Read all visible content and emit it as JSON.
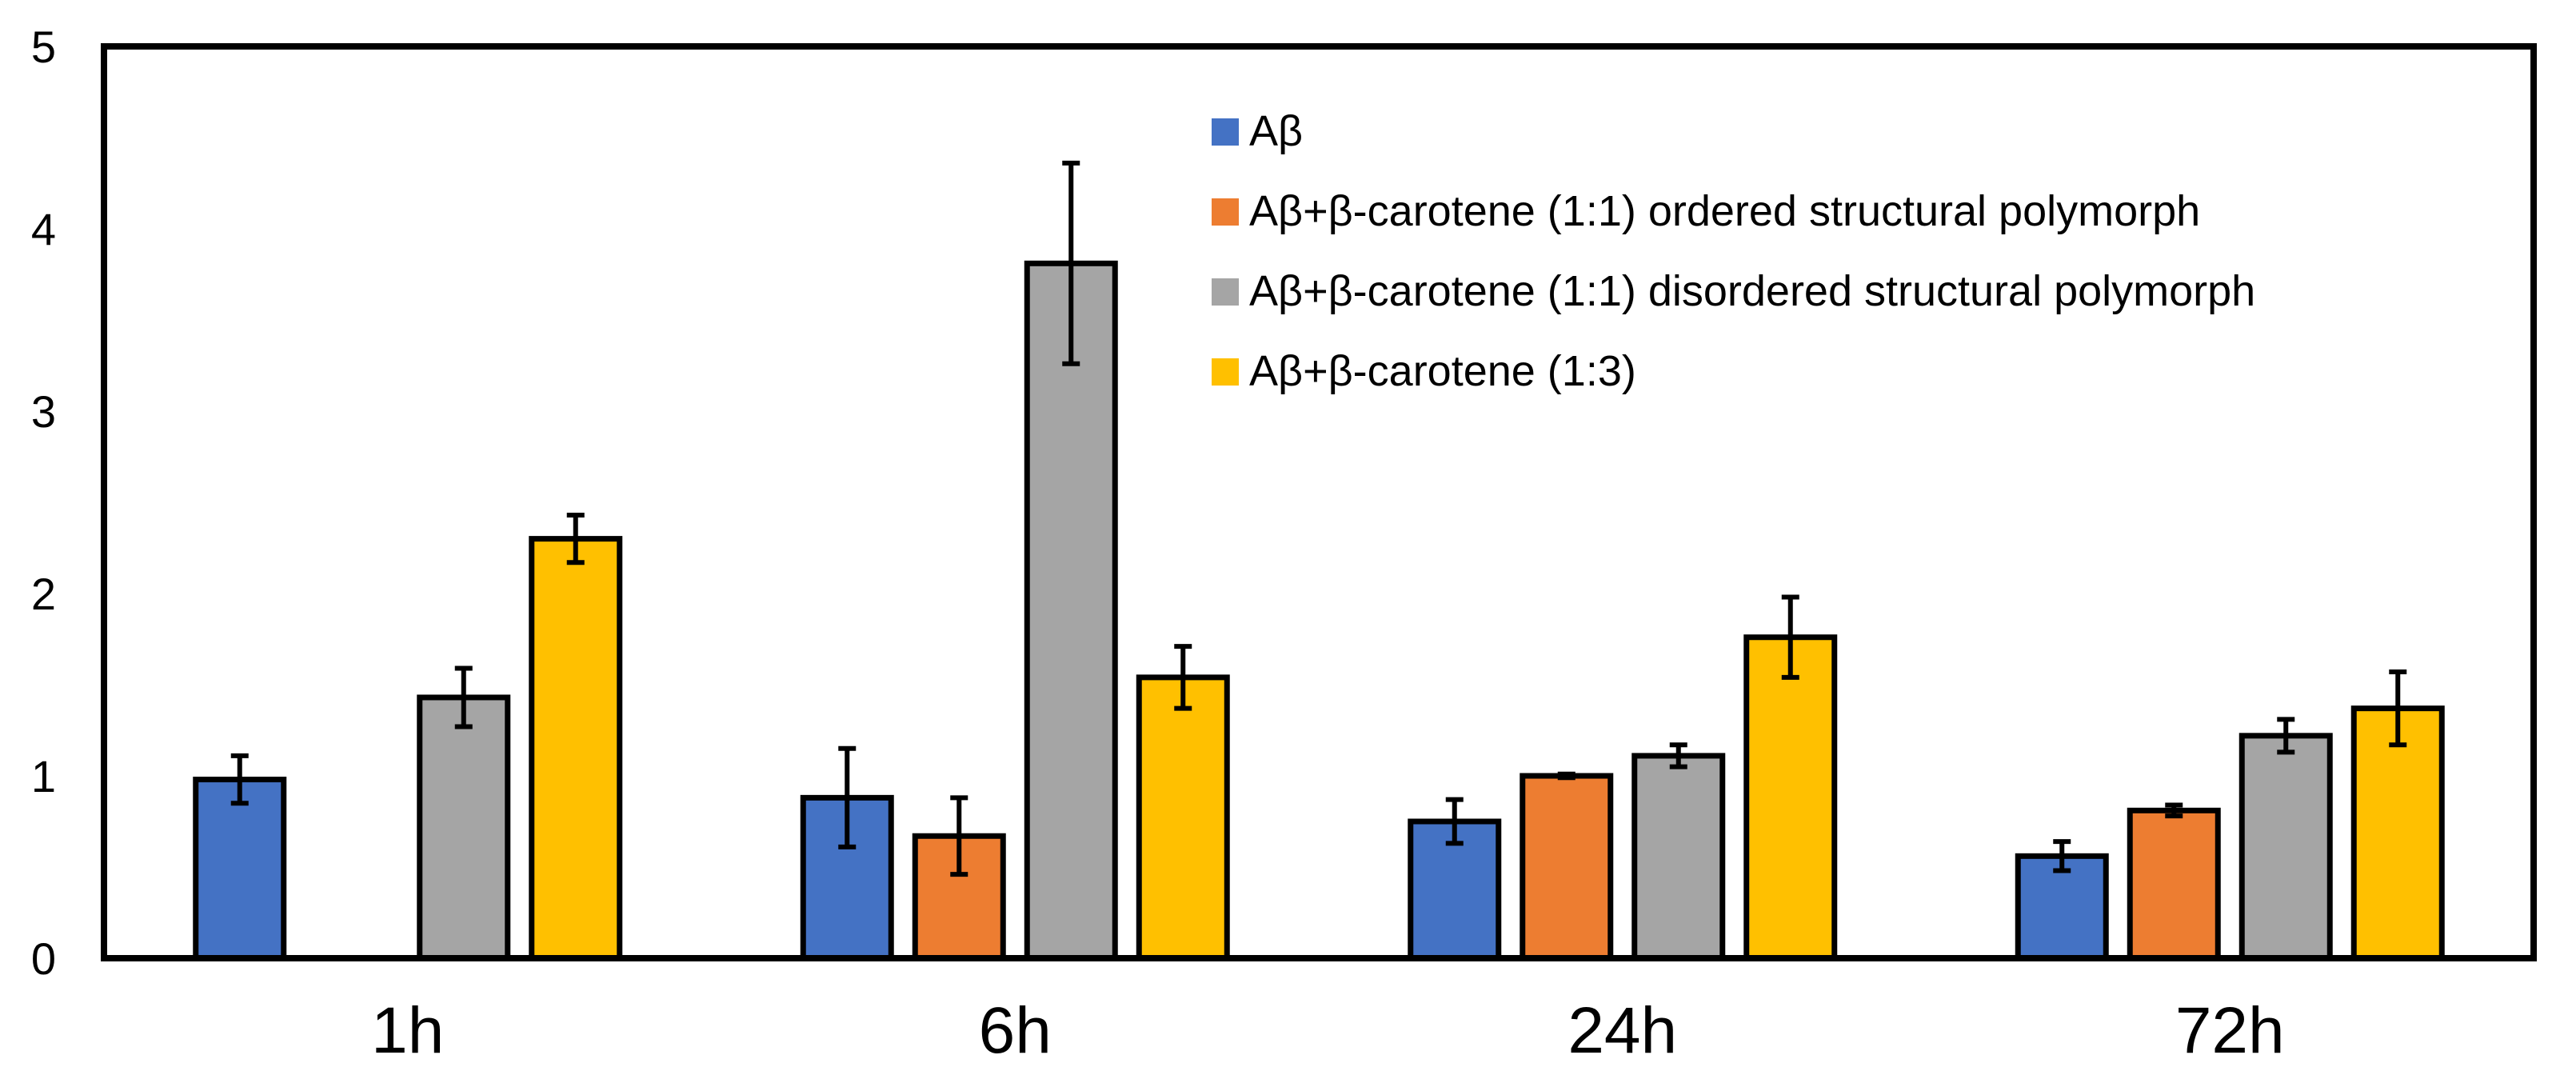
{
  "chart_data": {
    "type": "bar",
    "title": "",
    "xlabel": "",
    "ylabel": "",
    "ylim": [
      0,
      5
    ],
    "yticks": [
      "0",
      "1",
      "2",
      "3",
      "4",
      "5"
    ],
    "categories": [
      "1h",
      "6h",
      "24h",
      "72h"
    ],
    "grid": false,
    "legend_position": "top-center",
    "series": [
      {
        "name": "Aβ",
        "color": "#4472C4",
        "values": [
          0.98,
          0.88,
          0.75,
          0.56
        ],
        "errors": [
          0.13,
          0.27,
          0.12,
          0.08
        ]
      },
      {
        "name": "Aβ+β-carotene (1:1) ordered structural polymorph",
        "color": "#ED7D31",
        "values": [
          0,
          0.67,
          1.0,
          0.81
        ],
        "errors": [
          0,
          0.21,
          0.01,
          0.03
        ]
      },
      {
        "name": "Aβ+β-carotene (1:1) disordered structural polymorph",
        "color": "#A5A5A5",
        "values": [
          1.43,
          3.81,
          1.11,
          1.22
        ],
        "errors": [
          0.16,
          0.55,
          0.06,
          0.09
        ]
      },
      {
        "name": "Aβ+β-carotene (1:3)",
        "color": "#FFC000",
        "values": [
          2.3,
          1.54,
          1.76,
          1.37
        ],
        "errors": [
          0.13,
          0.17,
          0.22,
          0.2
        ]
      }
    ]
  }
}
